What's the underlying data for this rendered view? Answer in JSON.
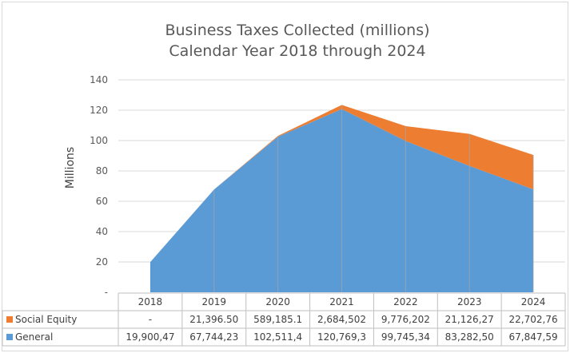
{
  "chart_data": {
    "type": "area",
    "stacked": true,
    "title": [
      "Business Taxes Collected (millions)",
      "Calendar Year 2018 through 2024"
    ],
    "ylabel": "Millions",
    "ylim": [
      0,
      140
    ],
    "yticks": [
      0,
      20,
      40,
      60,
      80,
      100,
      120,
      140
    ],
    "ytick_labels": [
      "-",
      "20",
      "40",
      "60",
      "80",
      "100",
      "120",
      "140"
    ],
    "grid": true,
    "categories": [
      "2018",
      "2019",
      "2020",
      "2021",
      "2022",
      "2023",
      "2024"
    ],
    "series": [
      {
        "name": "Social Equity",
        "color": "#ed7d31",
        "values": [
          0,
          0.0214,
          0.589,
          2.685,
          9.776,
          21.126,
          22.703
        ],
        "table_labels": [
          "-",
          "21,396.50",
          "589,185.1",
          "2,684,502",
          "9,776,202",
          "21,126,27",
          "22,702,76"
        ]
      },
      {
        "name": "General",
        "color": "#5b9bd5",
        "values": [
          19.9,
          67.744,
          102.511,
          120.769,
          99.745,
          83.283,
          67.848
        ],
        "table_labels": [
          "19,900,47",
          "67,744,23",
          "102,511,4",
          "120,769,3",
          "99,745,34",
          "83,282,50",
          "67,847,59"
        ]
      }
    ]
  }
}
